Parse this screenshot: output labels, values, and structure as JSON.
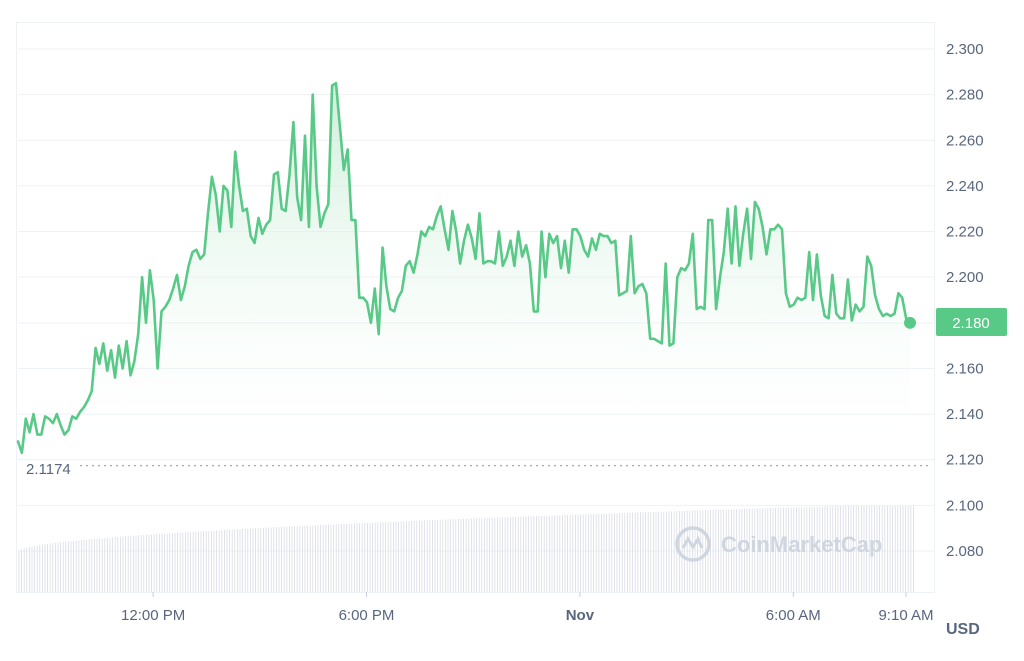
{
  "chart_data": {
    "type": "area",
    "y_ticks": [
      "2.300",
      "2.280",
      "2.260",
      "2.240",
      "2.220",
      "2.200",
      "2.180",
      "2.160",
      "2.140",
      "2.120",
      "2.100",
      "2.080"
    ],
    "ylim": [
      2.06,
      2.305
    ],
    "x_ticks": [
      {
        "label": "12:00 PM",
        "hour": 3.8,
        "bold": false
      },
      {
        "label": "6:00 PM",
        "hour": 9.8,
        "bold": false
      },
      {
        "label": "Nov",
        "hour": 15.8,
        "bold": true
      },
      {
        "label": "6:00 AM",
        "hour": 21.8,
        "bold": false
      },
      {
        "label": "9:10 AM",
        "hour": 24.97,
        "bold": false
      }
    ],
    "xlim_hours": [
      0,
      24.97
    ],
    "open_price": 2.1174,
    "open_label": "2.1174",
    "current_price": 2.18,
    "current_label": "2.180",
    "unit": "USD",
    "watermark": "CoinMarketCap",
    "colors": {
      "line": "#59c987",
      "fill_top": "#bfe9cf",
      "badge": "#59c987",
      "grid": "#eef1f5",
      "volume": "#d9dde4"
    },
    "series": [
      {
        "values": [
          2.128,
          2.123,
          2.138,
          2.132,
          2.14,
          2.131,
          2.131,
          2.139,
          2.138,
          2.136,
          2.14,
          2.135,
          2.131,
          2.133,
          2.139,
          2.138,
          2.141,
          2.143,
          2.146,
          2.15,
          2.169,
          2.162,
          2.171,
          2.159,
          2.168,
          2.156,
          2.17,
          2.16,
          2.172,
          2.157,
          2.163,
          2.175,
          2.2,
          2.18,
          2.203,
          2.19,
          2.16,
          2.185,
          2.187,
          2.19,
          2.195,
          2.201,
          2.19,
          2.196,
          2.205,
          2.211,
          2.212,
          2.208,
          2.21,
          2.228,
          2.244,
          2.236,
          2.22,
          2.24,
          2.238,
          2.222,
          2.255,
          2.24,
          2.229,
          2.23,
          2.218,
          2.215,
          2.226,
          2.219,
          2.223,
          2.225,
          2.245,
          2.246,
          2.23,
          2.229,
          2.245,
          2.268,
          2.235,
          2.225,
          2.262,
          2.222,
          2.28,
          2.24,
          2.222,
          2.228,
          2.232,
          2.284,
          2.285,
          2.266,
          2.247,
          2.256,
          2.225,
          2.225,
          2.191,
          2.191,
          2.189,
          2.18,
          2.195,
          2.175,
          2.213,
          2.196,
          2.186,
          2.185,
          2.191,
          2.194,
          2.205,
          2.207,
          2.202,
          2.21,
          2.22,
          2.218,
          2.222,
          2.221,
          2.227,
          2.231,
          2.221,
          2.212,
          2.229,
          2.22,
          2.206,
          2.216,
          2.223,
          2.217,
          2.208,
          2.228,
          2.206,
          2.207,
          2.207,
          2.206,
          2.22,
          2.205,
          2.209,
          2.216,
          2.205,
          2.22,
          2.209,
          2.214,
          2.206,
          2.185,
          2.185,
          2.22,
          2.2,
          2.219,
          2.215,
          2.218,
          2.204,
          2.216,
          2.202,
          2.221,
          2.221,
          2.218,
          2.212,
          2.209,
          2.217,
          2.212,
          2.219,
          2.218,
          2.218,
          2.215,
          2.216,
          2.192,
          2.193,
          2.194,
          2.218,
          2.193,
          2.196,
          2.197,
          2.193,
          2.173,
          2.173,
          2.172,
          2.171,
          2.206,
          2.17,
          2.171,
          2.2,
          2.204,
          2.203,
          2.206,
          2.219,
          2.186,
          2.187,
          2.186,
          2.225,
          2.225,
          2.186,
          2.2,
          2.211,
          2.23,
          2.206,
          2.231,
          2.205,
          2.219,
          2.23,
          2.208,
          2.233,
          2.23,
          2.222,
          2.21,
          2.221,
          2.221,
          2.223,
          2.221,
          2.193,
          2.187,
          2.188,
          2.191,
          2.19,
          2.191,
          2.211,
          2.19,
          2.21,
          2.192,
          2.183,
          2.182,
          2.201,
          2.184,
          2.182,
          2.182,
          2.199,
          2.181,
          2.188,
          2.185,
          2.187,
          2.209,
          2.205,
          2.192,
          2.186,
          2.183,
          2.184,
          2.183,
          2.184,
          2.193,
          2.191,
          2.182,
          2.18
        ]
      }
    ]
  }
}
